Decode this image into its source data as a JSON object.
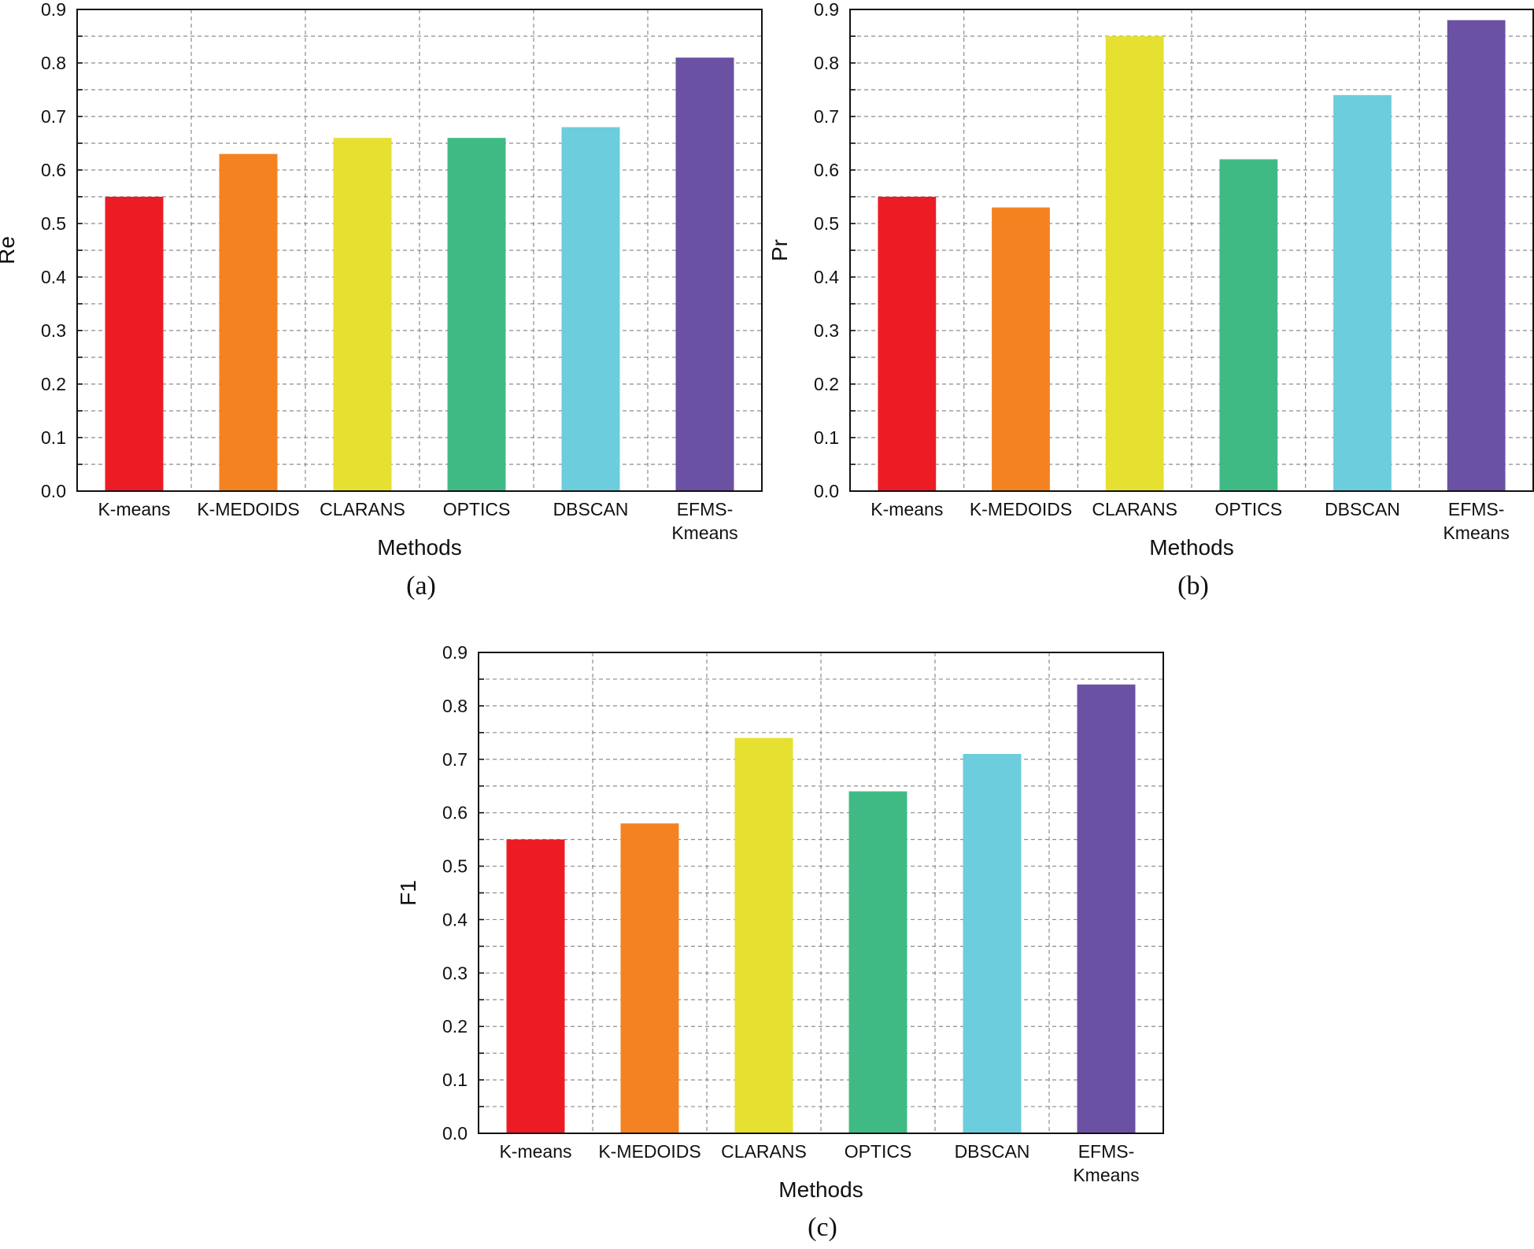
{
  "chart_data": [
    {
      "type": "bar",
      "caption": "(a)",
      "categories": [
        "K-means",
        "K-MEDOIDS",
        "CLARANS",
        "OPTICS",
        "DBSCAN",
        "EFMS-Kmeans"
      ],
      "category_display": [
        [
          "K-means"
        ],
        [
          "K-MEDOIDS"
        ],
        [
          "CLARANS"
        ],
        [
          "OPTICS"
        ],
        [
          "DBSCAN"
        ],
        [
          "EFMS-",
          "Kmeans"
        ]
      ],
      "values": [
        0.55,
        0.63,
        0.66,
        0.66,
        0.68,
        0.81
      ],
      "xlabel": "Methods",
      "ylabel": "Re",
      "ylim": [
        0,
        0.9
      ],
      "yticks": [
        "0.0",
        "0.1",
        "0.2",
        "0.3",
        "0.4",
        "0.5",
        "0.6",
        "0.7",
        "0.8",
        "0.9"
      ],
      "grid": true
    },
    {
      "type": "bar",
      "caption": "(b)",
      "categories": [
        "K-means",
        "K-MEDOIDS",
        "CLARANS",
        "OPTICS",
        "DBSCAN",
        "EFMS-Kmeans"
      ],
      "category_display": [
        [
          "K-means"
        ],
        [
          "K-MEDOIDS"
        ],
        [
          "CLARANS"
        ],
        [
          "OPTICS"
        ],
        [
          "DBSCAN"
        ],
        [
          "EFMS-",
          "Kmeans"
        ]
      ],
      "values": [
        0.55,
        0.53,
        0.85,
        0.62,
        0.74,
        0.88
      ],
      "xlabel": "Methods",
      "ylabel": "Pr",
      "ylim": [
        0,
        0.9
      ],
      "yticks": [
        "0.0",
        "0.1",
        "0.2",
        "0.3",
        "0.4",
        "0.5",
        "0.6",
        "0.7",
        "0.8",
        "0.9"
      ],
      "grid": true
    },
    {
      "type": "bar",
      "caption": "(c)",
      "categories": [
        "K-means",
        "K-MEDOIDS",
        "CLARANS",
        "OPTICS",
        "DBSCAN",
        "EFMS-Kmeans"
      ],
      "category_display": [
        [
          "K-means"
        ],
        [
          "K-MEDOIDS"
        ],
        [
          "CLARANS"
        ],
        [
          "OPTICS"
        ],
        [
          "DBSCAN"
        ],
        [
          "EFMS-",
          "Kmeans"
        ]
      ],
      "values": [
        0.55,
        0.58,
        0.74,
        0.64,
        0.71,
        0.84
      ],
      "xlabel": "Methods",
      "ylabel": "F1",
      "ylim": [
        0,
        0.9
      ],
      "yticks": [
        "0.0",
        "0.1",
        "0.2",
        "0.3",
        "0.4",
        "0.5",
        "0.6",
        "0.7",
        "0.8",
        "0.9"
      ],
      "grid": true
    }
  ],
  "colors": {
    "bars": [
      "#ED1C24",
      "#F58220",
      "#E6E030",
      "#40BA84",
      "#6CCDDC",
      "#6A51A3"
    ],
    "grid": "#8c8c8c",
    "axis": "#111111"
  }
}
